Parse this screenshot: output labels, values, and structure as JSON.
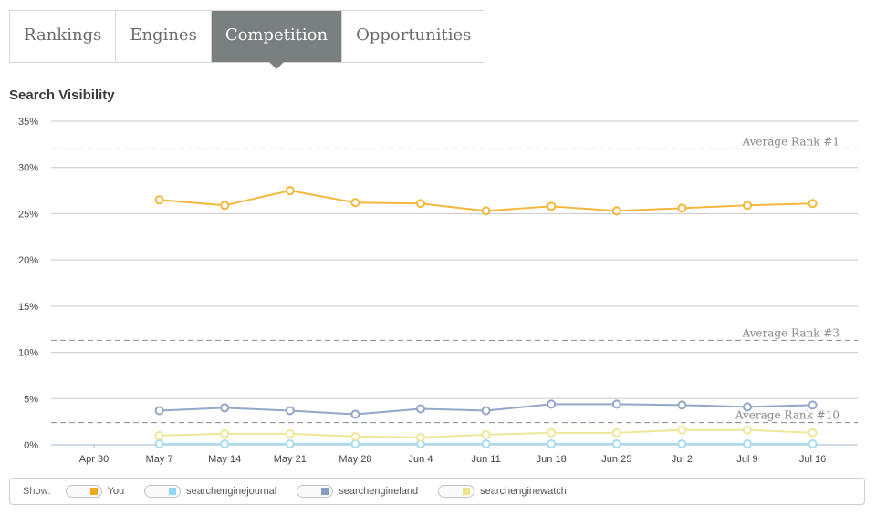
{
  "tabs": [
    {
      "label": "Rankings",
      "active": false
    },
    {
      "label": "Engines",
      "active": false
    },
    {
      "label": "Competition",
      "active": true
    },
    {
      "label": "Opportunities",
      "active": false
    }
  ],
  "section_title": "Search Visibility",
  "legend": {
    "show_label": "Show:",
    "items": [
      {
        "label": "You",
        "color": "#f5a623"
      },
      {
        "label": "searchenginejournal",
        "color": "#8fd7f2"
      },
      {
        "label": "searchengineland",
        "color": "#8b9dc3"
      },
      {
        "label": "searchenginewatch",
        "color": "#ece48f"
      }
    ]
  },
  "chart_data": {
    "type": "line",
    "title": "Search Visibility",
    "x": [
      "Apr 30",
      "May 7",
      "May 14",
      "May 21",
      "May 28",
      "Jun 4",
      "Jun 11",
      "Jun 18",
      "Jun 25",
      "Jul 2",
      "Jul 9",
      "Jul 16"
    ],
    "ylim": [
      0,
      35
    ],
    "yticks": [
      "0%",
      "5%",
      "10%",
      "15%",
      "20%",
      "25%",
      "30%",
      "35%"
    ],
    "grid": true,
    "legend_position": "bottom",
    "reference_lines": [
      {
        "label": "Average Rank #1",
        "value": 32
      },
      {
        "label": "Average Rank #3",
        "value": 11.3
      },
      {
        "label": "Average Rank #10",
        "value": 2.4
      }
    ],
    "series": [
      {
        "name": "You",
        "color": "#f5b73b",
        "values": [
          null,
          26.5,
          25.9,
          27.5,
          26.2,
          26.1,
          25.3,
          25.8,
          25.3,
          25.6,
          25.9,
          26.1
        ]
      },
      {
        "name": "searchenginejournal",
        "color": "#a6dcee",
        "values": [
          null,
          0.1,
          0.1,
          0.1,
          0.1,
          0.1,
          0.1,
          0.1,
          0.1,
          0.1,
          0.1,
          0.1
        ]
      },
      {
        "name": "searchengineland",
        "color": "#93a7c8",
        "values": [
          null,
          3.7,
          4.0,
          3.7,
          3.3,
          3.9,
          3.7,
          4.4,
          4.4,
          4.3,
          4.1,
          4.3
        ]
      },
      {
        "name": "searchenginewatch",
        "color": "#eee79a",
        "values": [
          null,
          1.0,
          1.2,
          1.2,
          0.9,
          0.8,
          1.1,
          1.3,
          1.3,
          1.6,
          1.6,
          1.3
        ]
      }
    ]
  }
}
